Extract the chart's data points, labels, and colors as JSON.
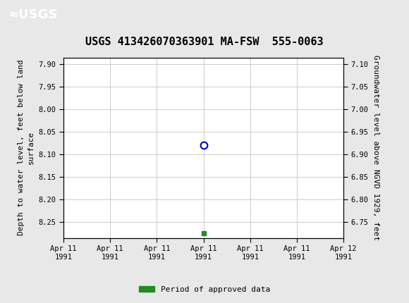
{
  "title": "USGS 413426070363901 MA-FSW  555-0063",
  "ylabel_left": "Depth to water level, feet below land\nsurface",
  "ylabel_right": "Groundwater level above NGVD 1929, feet",
  "ylim_left": [
    8.285,
    7.885
  ],
  "ylim_right": [
    6.715,
    7.115
  ],
  "yticks_left": [
    7.9,
    7.95,
    8.0,
    8.05,
    8.1,
    8.15,
    8.2,
    8.25
  ],
  "yticks_right": [
    7.1,
    7.05,
    7.0,
    6.95,
    6.9,
    6.85,
    6.8,
    6.75
  ],
  "xlim": [
    0,
    6
  ],
  "xtick_labels": [
    "Apr 11\n1991",
    "Apr 11\n1991",
    "Apr 11\n1991",
    "Apr 11\n1991",
    "Apr 11\n1991",
    "Apr 11\n1991",
    "Apr 12\n1991"
  ],
  "xtick_positions": [
    0,
    1,
    2,
    3,
    4,
    5,
    6
  ],
  "data_point_x": 3.0,
  "data_point_y_circle": 8.08,
  "data_point_y_square": 8.275,
  "circle_color": "#0000cc",
  "square_color": "#228B22",
  "header_color": "#1a6b3c",
  "legend_label": "Period of approved data",
  "legend_color": "#228B22",
  "background_color": "#e8e8e8",
  "plot_bg_color": "#ffffff",
  "grid_color": "#cccccc",
  "title_fontsize": 11,
  "axis_label_fontsize": 8,
  "tick_fontsize": 7.5
}
